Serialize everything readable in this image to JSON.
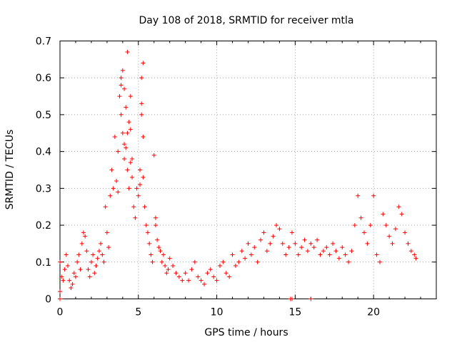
{
  "chart_data": {
    "type": "scatter",
    "title": "Day 108 of 2018, SRMTID for receiver mtla",
    "xlabel": "GPS time / hours",
    "ylabel": "SRMTID / TECUs",
    "xlim": [
      0,
      24
    ],
    "ylim": [
      0,
      0.7
    ],
    "xticks": [
      0,
      5,
      10,
      15,
      20
    ],
    "yticks": [
      0,
      0.1,
      0.2,
      0.3,
      0.4,
      0.5,
      0.6,
      0.7
    ],
    "xtick_labels": [
      "0",
      "5",
      "10",
      "15",
      "20"
    ],
    "ytick_labels": [
      "0",
      "0.1",
      "0.2",
      "0.3",
      "0.4",
      "0.5",
      "0.6",
      "0.7"
    ],
    "grid": true,
    "marker": "+",
    "color": "#ff0000",
    "series": [
      {
        "name": "SRMTID",
        "x": [
          0.0,
          0.1,
          0.2,
          0.3,
          0.4,
          0.5,
          0.6,
          0.7,
          0.8,
          0.9,
          1.0,
          1.1,
          1.2,
          1.3,
          1.4,
          1.5,
          1.6,
          1.7,
          1.8,
          1.9,
          2.0,
          2.1,
          2.2,
          2.3,
          2.4,
          2.5,
          2.6,
          2.7,
          2.8,
          2.9,
          3.0,
          3.1,
          3.2,
          3.3,
          3.4,
          3.5,
          3.6,
          3.7,
          3.8,
          3.9,
          3.9,
          4.0,
          4.0,
          4.1,
          4.1,
          4.2,
          4.2,
          4.3,
          4.3,
          4.4,
          4.4,
          4.5,
          4.5,
          4.6,
          4.7,
          4.8,
          4.9,
          5.0,
          5.1,
          5.2,
          5.2,
          5.3,
          5.3,
          5.4,
          5.5,
          5.6,
          5.7,
          5.8,
          5.9,
          6.0,
          6.1,
          6.2,
          6.3,
          6.4,
          6.5,
          6.6,
          6.7,
          6.8,
          6.9,
          7.0,
          7.2,
          7.4,
          7.6,
          7.8,
          8.0,
          8.2,
          8.4,
          8.6,
          8.8,
          9.0,
          9.2,
          9.4,
          9.6,
          9.8,
          10.0,
          10.2,
          10.4,
          10.6,
          10.8,
          11.0,
          11.2,
          11.4,
          11.6,
          11.8,
          12.0,
          12.2,
          12.4,
          12.6,
          12.8,
          13.0,
          13.2,
          13.4,
          13.6,
          13.8,
          14.0,
          14.2,
          14.4,
          14.6,
          14.8,
          15.0,
          15.2,
          15.4,
          15.6,
          15.8,
          16.0,
          16.2,
          16.4,
          16.6,
          16.8,
          17.0,
          17.2,
          17.4,
          17.6,
          17.8,
          18.0,
          18.2,
          18.4,
          18.6,
          18.8,
          19.0,
          19.2,
          19.4,
          19.6,
          19.8,
          20.0,
          20.2,
          20.4,
          20.6,
          20.8,
          21.0,
          21.2,
          21.4,
          21.6,
          21.8,
          22.0,
          22.2,
          22.4,
          22.6,
          22.7,
          0.0,
          0.0,
          14.7,
          14.8,
          16.0,
          4.3,
          5.2,
          4.1,
          3.9,
          4.5,
          5.3,
          3.7,
          4.6,
          5.1,
          6.1
        ],
        "y": [
          0.1,
          0.06,
          0.05,
          0.08,
          0.12,
          0.09,
          0.05,
          0.03,
          0.04,
          0.07,
          0.06,
          0.1,
          0.12,
          0.08,
          0.15,
          0.18,
          0.17,
          0.13,
          0.08,
          0.06,
          0.1,
          0.12,
          0.07,
          0.09,
          0.11,
          0.13,
          0.15,
          0.12,
          0.1,
          0.25,
          0.18,
          0.14,
          0.28,
          0.35,
          0.3,
          0.44,
          0.32,
          0.4,
          0.55,
          0.6,
          0.5,
          0.45,
          0.62,
          0.38,
          0.57,
          0.52,
          0.41,
          0.35,
          0.67,
          0.48,
          0.3,
          0.46,
          0.55,
          0.38,
          0.25,
          0.22,
          0.3,
          0.28,
          0.35,
          0.5,
          0.6,
          0.64,
          0.33,
          0.25,
          0.2,
          0.18,
          0.15,
          0.12,
          0.1,
          0.39,
          0.2,
          0.16,
          0.14,
          0.13,
          0.1,
          0.12,
          0.09,
          0.07,
          0.08,
          0.11,
          0.09,
          0.07,
          0.06,
          0.05,
          0.07,
          0.05,
          0.08,
          0.1,
          0.06,
          0.05,
          0.04,
          0.07,
          0.08,
          0.06,
          0.05,
          0.09,
          0.1,
          0.07,
          0.06,
          0.12,
          0.09,
          0.1,
          0.13,
          0.11,
          0.15,
          0.12,
          0.14,
          0.1,
          0.16,
          0.18,
          0.13,
          0.15,
          0.17,
          0.2,
          0.19,
          0.15,
          0.12,
          0.14,
          0.18,
          0.15,
          0.12,
          0.14,
          0.16,
          0.13,
          0.15,
          0.14,
          0.16,
          0.12,
          0.13,
          0.14,
          0.12,
          0.15,
          0.13,
          0.11,
          0.14,
          0.12,
          0.1,
          0.13,
          0.2,
          0.28,
          0.22,
          0.18,
          0.15,
          0.2,
          0.28,
          0.12,
          0.1,
          0.23,
          0.2,
          0.17,
          0.15,
          0.19,
          0.25,
          0.23,
          0.18,
          0.15,
          0.13,
          0.12,
          0.11,
          0.0,
          0.02,
          0.0,
          0.0,
          0.0,
          0.45,
          0.53,
          0.42,
          0.58,
          0.37,
          0.44,
          0.29,
          0.33,
          0.31,
          0.22
        ]
      }
    ]
  }
}
